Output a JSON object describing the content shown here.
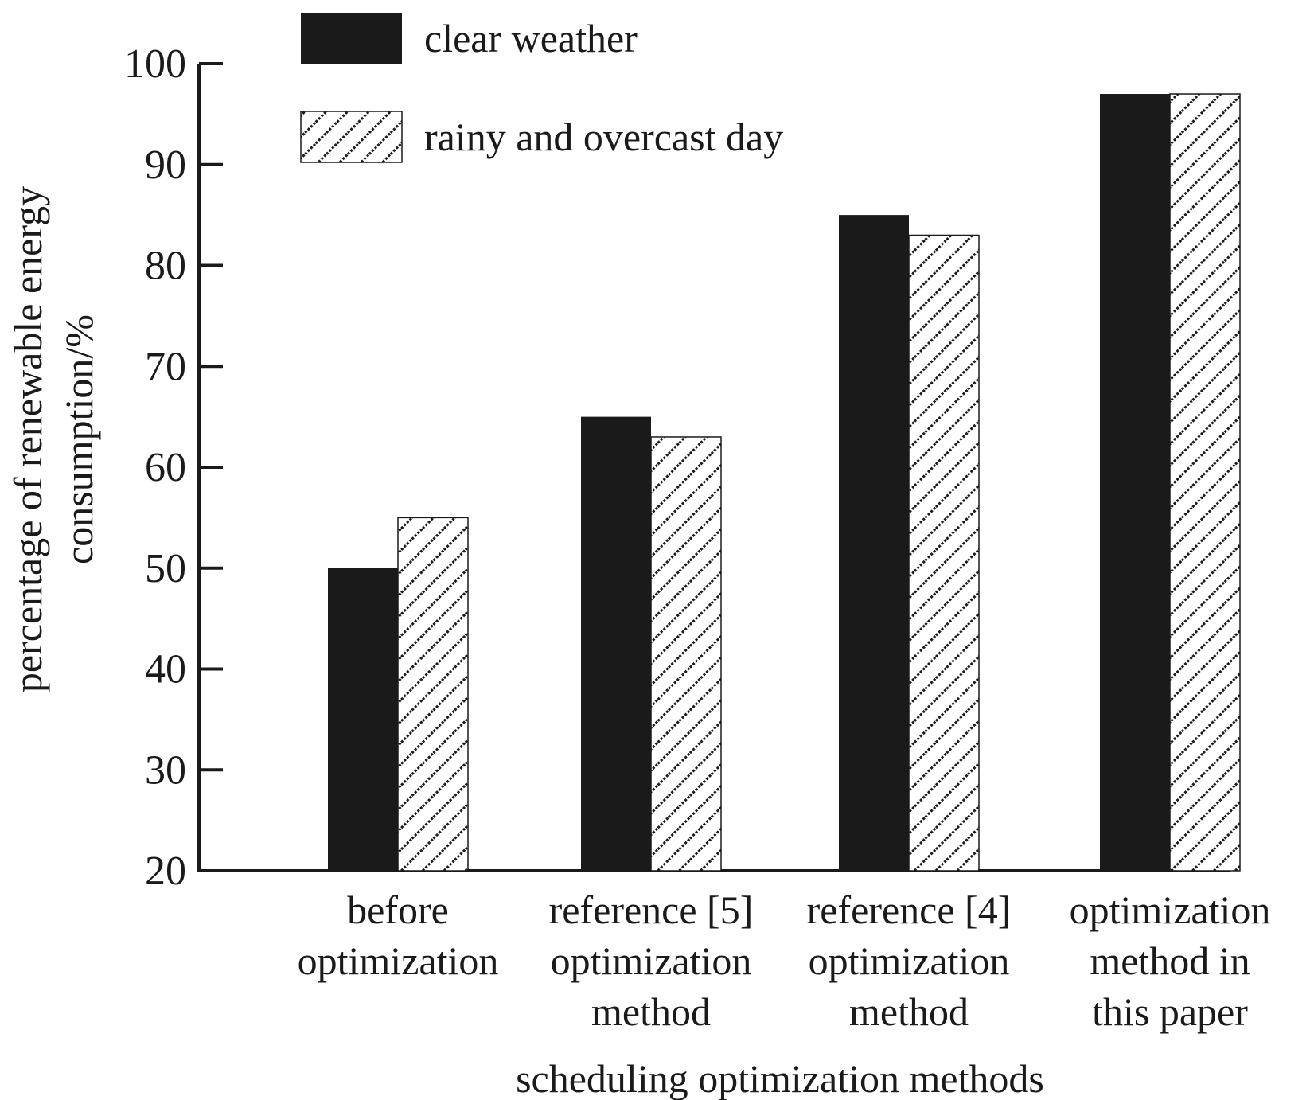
{
  "chart_data": {
    "type": "bar",
    "categories": [
      [
        "before",
        "optimization"
      ],
      [
        "reference [5]",
        "optimization",
        "method"
      ],
      [
        "reference [4]",
        "optimization",
        "method"
      ],
      [
        "optimization",
        "method in",
        "this paper"
      ]
    ],
    "series": [
      {
        "name": "clear weather",
        "values": [
          50,
          65,
          85,
          97
        ],
        "fill": "solid",
        "color": "#1a1a1a"
      },
      {
        "name": "rainy and overcast day",
        "values": [
          55,
          63,
          83,
          97
        ],
        "fill": "hatched",
        "color": "#1a1a1a"
      }
    ],
    "xlabel": "scheduling optimization methods",
    "ylabel": [
      "percentage of renewable energy",
      "consumption/%"
    ],
    "ylim": [
      20,
      100
    ],
    "yticks": [
      20,
      30,
      40,
      50,
      60,
      70,
      80,
      90,
      100
    ],
    "grid": false,
    "legend_position": "top-left"
  }
}
